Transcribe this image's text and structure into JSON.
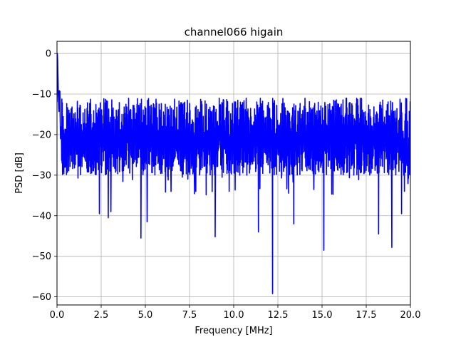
{
  "chart_data": {
    "type": "line",
    "title": "channel066 higain",
    "xlabel": "Frequency [MHz]",
    "ylabel": "PSD [dB]",
    "xlim": [
      0,
      20
    ],
    "ylim": [
      -62,
      3
    ],
    "xticks": [
      0,
      2.5,
      5,
      7.5,
      10,
      12.5,
      15,
      17.5,
      20
    ],
    "xtick_labels": [
      "0.0",
      "2.5",
      "5.0",
      "7.5",
      "10.0",
      "12.5",
      "15.0",
      "17.5",
      "20.0"
    ],
    "yticks": [
      0,
      -10,
      -20,
      -30,
      -40,
      -50,
      -60
    ],
    "ytick_labels": [
      "0",
      "−10",
      "−20",
      "−30",
      "−40",
      "−50",
      "−60"
    ],
    "grid": true,
    "legend": "none",
    "series": [
      {
        "color": "#0000ff",
        "description_points": {
          "x": [
            0.0,
            0.02,
            0.05,
            0.1,
            0.15,
            0.2,
            0.3,
            0.5,
            0.7,
            1.0,
            1.5,
            2.0,
            2.5,
            3.0,
            3.5,
            4.0,
            4.5,
            5.0,
            5.5,
            6.0,
            6.5,
            7.0,
            7.5,
            8.0,
            8.5,
            9.0,
            9.5,
            10.0,
            10.5,
            11.0,
            11.5,
            12.0,
            12.5,
            13.0,
            13.5,
            14.0,
            14.5,
            15.0,
            15.5,
            16.0,
            16.5,
            17.0,
            17.5,
            18.0,
            18.5,
            19.0,
            19.5,
            20.0
          ],
          "y": [
            -12,
            0,
            -6,
            -15,
            -8,
            -20,
            -17,
            -21,
            -22,
            -20,
            -21,
            -20,
            -21,
            -21,
            -21,
            -20,
            -21,
            -21,
            -20,
            -21,
            -21,
            -20,
            -21,
            -21,
            -21,
            -20,
            -21,
            -21,
            -20,
            -21,
            -21,
            -21,
            -20,
            -21,
            -21,
            -20,
            -21,
            -21,
            -20,
            -21,
            -21,
            -20,
            -21,
            -21,
            -20,
            -21,
            -21,
            -21
          ]
        },
        "envelope_top": -11,
        "envelope_bottom": -31,
        "deep_dips": [
          {
            "x": 2.4,
            "y": -39.5
          },
          {
            "x": 2.9,
            "y": -40.5
          },
          {
            "x": 3.05,
            "y": -39
          },
          {
            "x": 4.75,
            "y": -45.5
          },
          {
            "x": 5.1,
            "y": -41.5
          },
          {
            "x": 8.95,
            "y": -45.2
          },
          {
            "x": 11.4,
            "y": -44
          },
          {
            "x": 12.2,
            "y": -59.2
          },
          {
            "x": 13.4,
            "y": -42
          },
          {
            "x": 15.1,
            "y": -48.5
          },
          {
            "x": 18.2,
            "y": -44.5
          },
          {
            "x": 18.95,
            "y": -47.8
          },
          {
            "x": 19.5,
            "y": -39.5
          }
        ],
        "n_points": 1600
      }
    ]
  }
}
